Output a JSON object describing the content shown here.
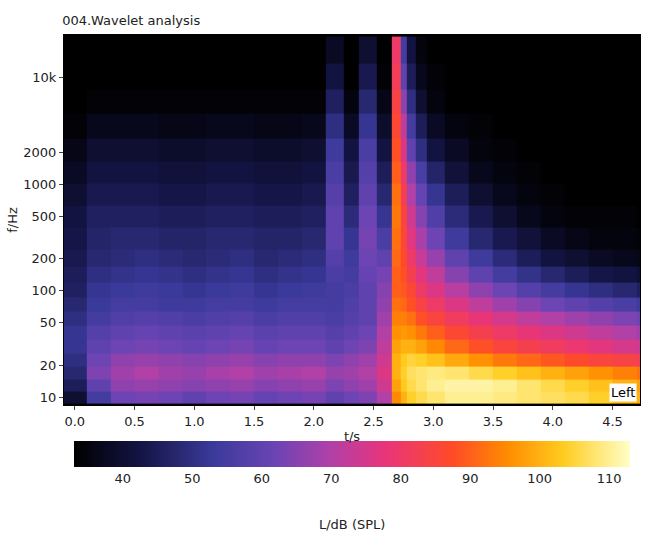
{
  "chart_data": {
    "type": "heatmap",
    "title": "004.Wavelet analysis",
    "x_label": "t/s",
    "y_label": "f/Hz",
    "log": "y",
    "grid": false,
    "x": [
      0.0,
      0.2,
      0.4,
      0.6,
      0.8,
      1.0,
      1.2,
      1.4,
      1.6,
      1.8,
      2.0,
      2.2,
      2.3,
      2.45,
      2.6,
      2.7,
      2.75,
      2.8,
      2.9,
      3.0,
      3.2,
      3.4,
      3.6,
      3.8,
      4.0,
      4.2,
      4.4,
      4.6,
      4.8
    ],
    "y": [
      10,
      13,
      17,
      22,
      30,
      40,
      55,
      75,
      100,
      140,
      200,
      300,
      500,
      800,
      1300,
      2000,
      3500,
      6000,
      10000,
      18000
    ],
    "z": [
      [
        40,
        55,
        62,
        63,
        62,
        60,
        62,
        63,
        61,
        62,
        63,
        60,
        62,
        64,
        70,
        95,
        100,
        104,
        106,
        108,
        110,
        110,
        109,
        108,
        107,
        106,
        104,
        102,
        100
      ],
      [
        45,
        60,
        66,
        67,
        66,
        65,
        66,
        67,
        65,
        66,
        67,
        64,
        66,
        68,
        74,
        98,
        103,
        106,
        108,
        110,
        111,
        111,
        110,
        108,
        106,
        104,
        102,
        100,
        98
      ],
      [
        48,
        64,
        68,
        70,
        68,
        67,
        69,
        70,
        68,
        69,
        70,
        67,
        68,
        70,
        76,
        100,
        104,
        107,
        108,
        109,
        108,
        106,
        104,
        102,
        100,
        98,
        96,
        94,
        92
      ],
      [
        50,
        62,
        66,
        67,
        66,
        65,
        66,
        67,
        65,
        66,
        66,
        64,
        66,
        68,
        74,
        100,
        103,
        105,
        104,
        102,
        99,
        96,
        93,
        91,
        89,
        87,
        85,
        84,
        82
      ],
      [
        52,
        60,
        62,
        63,
        62,
        61,
        62,
        63,
        61,
        62,
        62,
        60,
        62,
        64,
        72,
        98,
        100,
        100,
        98,
        95,
        91,
        88,
        85,
        83,
        81,
        79,
        77,
        75,
        74
      ],
      [
        52,
        58,
        60,
        61,
        60,
        59,
        60,
        61,
        59,
        60,
        60,
        58,
        60,
        62,
        70,
        96,
        97,
        96,
        93,
        90,
        86,
        83,
        80,
        78,
        76,
        74,
        72,
        70,
        68
      ],
      [
        50,
        55,
        57,
        58,
        57,
        56,
        57,
        58,
        56,
        57,
        57,
        56,
        58,
        60,
        68,
        94,
        94,
        92,
        88,
        85,
        81,
        78,
        75,
        72,
        70,
        68,
        66,
        64,
        62
      ],
      [
        48,
        53,
        55,
        55,
        54,
        54,
        55,
        55,
        54,
        55,
        55,
        55,
        57,
        60,
        66,
        92,
        91,
        88,
        84,
        80,
        76,
        72,
        68,
        65,
        62,
        60,
        58,
        56,
        54
      ],
      [
        46,
        52,
        53,
        54,
        53,
        52,
        53,
        54,
        52,
        53,
        54,
        55,
        56,
        60,
        65,
        90,
        89,
        86,
        80,
        76,
        71,
        66,
        62,
        58,
        55,
        52,
        50,
        48,
        46
      ],
      [
        45,
        50,
        51,
        52,
        51,
        50,
        51,
        52,
        50,
        51,
        52,
        56,
        55,
        61,
        63,
        90,
        88,
        83,
        77,
        72,
        65,
        60,
        55,
        51,
        48,
        45,
        43,
        42,
        40
      ],
      [
        44,
        48,
        49,
        50,
        49,
        48,
        49,
        50,
        48,
        49,
        50,
        58,
        54,
        62,
        60,
        91,
        87,
        80,
        73,
        67,
        60,
        54,
        49,
        45,
        42,
        40,
        38,
        37,
        36
      ],
      [
        43,
        47,
        48,
        48,
        47,
        47,
        48,
        48,
        47,
        47,
        48,
        60,
        52,
        63,
        56,
        92,
        86,
        77,
        69,
        62,
        54,
        48,
        44,
        41,
        38,
        36,
        35,
        35,
        34
      ],
      [
        42,
        46,
        46,
        46,
        45,
        45,
        46,
        46,
        45,
        45,
        46,
        60,
        49,
        62,
        52,
        93,
        85,
        74,
        65,
        57,
        49,
        44,
        40,
        37,
        35,
        34,
        34,
        34,
        33
      ],
      [
        40,
        44,
        44,
        44,
        43,
        43,
        44,
        44,
        43,
        43,
        44,
        58,
        46,
        60,
        48,
        92,
        83,
        70,
        61,
        52,
        45,
        40,
        37,
        35,
        34,
        33,
        33,
        33,
        33
      ],
      [
        38,
        42,
        42,
        42,
        41,
        41,
        42,
        42,
        41,
        41,
        42,
        56,
        44,
        58,
        45,
        90,
        80,
        66,
        56,
        47,
        41,
        37,
        35,
        34,
        33,
        33,
        33,
        33,
        33
      ],
      [
        36,
        40,
        40,
        40,
        39,
        39,
        40,
        40,
        39,
        39,
        40,
        54,
        42,
        56,
        42,
        88,
        76,
        60,
        50,
        42,
        38,
        35,
        34,
        33,
        33,
        33,
        33,
        33,
        33
      ],
      [
        34,
        37,
        37,
        37,
        36,
        36,
        37,
        37,
        36,
        36,
        37,
        50,
        38,
        52,
        39,
        86,
        72,
        55,
        45,
        38,
        35,
        34,
        33,
        33,
        33,
        33,
        33,
        33,
        33
      ],
      [
        33,
        34,
        34,
        34,
        34,
        34,
        34,
        34,
        34,
        34,
        34,
        46,
        35,
        48,
        36,
        84,
        66,
        50,
        40,
        35,
        33,
        33,
        33,
        33,
        33,
        33,
        33,
        33,
        33
      ],
      [
        33,
        33,
        33,
        33,
        33,
        33,
        33,
        33,
        33,
        33,
        33,
        42,
        33,
        44,
        34,
        82,
        60,
        45,
        37,
        34,
        33,
        33,
        33,
        33,
        33,
        33,
        33,
        33,
        33
      ],
      [
        33,
        33,
        33,
        33,
        33,
        33,
        33,
        33,
        33,
        33,
        33,
        38,
        33,
        40,
        33,
        80,
        55,
        42,
        35,
        33,
        33,
        33,
        33,
        33,
        33,
        33,
        33,
        33,
        33
      ]
    ],
    "xlim": [
      -0.09,
      4.73
    ],
    "ylim": [
      8.5,
      25000
    ],
    "xticks": [
      {
        "value": 0,
        "label": "0.0"
      },
      0.5,
      {
        "value": 1,
        "label": "1.0"
      },
      1.5,
      {
        "value": 2,
        "label": "2.0"
      },
      2.5,
      {
        "value": 3,
        "label": "3.0"
      },
      3.5,
      {
        "value": 4,
        "label": "4.0"
      },
      4.5
    ],
    "yticks": [
      10,
      20,
      50,
      100,
      200,
      500,
      1000,
      2000,
      {
        "value": 10000,
        "label": "10k"
      }
    ],
    "colorbar": {
      "title": "L/dB (SPL)",
      "range": [
        33,
        113
      ],
      "ticks": [
        40,
        50,
        60,
        70,
        80,
        90,
        100,
        110
      ]
    },
    "annotations": [
      {
        "text": "Left"
      }
    ]
  }
}
